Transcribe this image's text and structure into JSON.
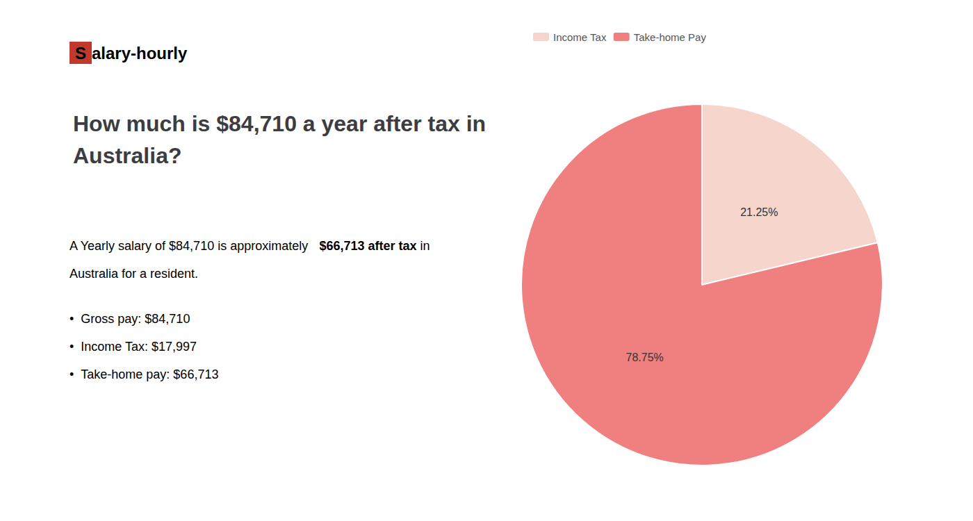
{
  "chart_data": {
    "type": "pie",
    "title": "How much is $84,710 a year after tax in\nAustralia?",
    "annotations": [
      [
        {
          "text": "S",
          "color": "#ffffff",
          "box_color": "#c0392b"
        },
        {
          "text": "alary-hourly",
          "color": "#1a1a1a"
        }
      ],
      [
        {
          "text": "A Yearly salary of $84,710 is approximately ",
          "color": "#2c2c2c"
        },
        {
          "text": "$66,713 after tax",
          "color": "#cc0000"
        },
        {
          "text": " in",
          "color": "#2c2c2c"
        }
      ],
      [
        {
          "text": "Australia for a resident.",
          "color": "#2c2c2c"
        }
      ],
      [
        {
          "text": "•",
          "color": "#2c2c2c"
        },
        {
          "text": "Gross pay: $84,710",
          "color": "#2c2c2c"
        }
      ],
      [
        {
          "text": "•",
          "color": "#2c2c2c"
        },
        {
          "text": "Income Tax: $17,997",
          "color": "#2c2c2c"
        }
      ],
      [
        {
          "text": "•",
          "color": "#2c2c2c"
        },
        {
          "text": "Take-home pay: $66,713",
          "color": "#2c2c2c"
        }
      ]
    ],
    "categories": [
      "Income Tax",
      "Take-home Pay"
    ],
    "values": [
      21.25,
      78.75
    ],
    "value_labels": [
      "21.25%",
      "78.75%"
    ],
    "colors": [
      "#f5d5cc",
      "#f08080"
    ],
    "data_labels": true,
    "legend": "top"
  }
}
